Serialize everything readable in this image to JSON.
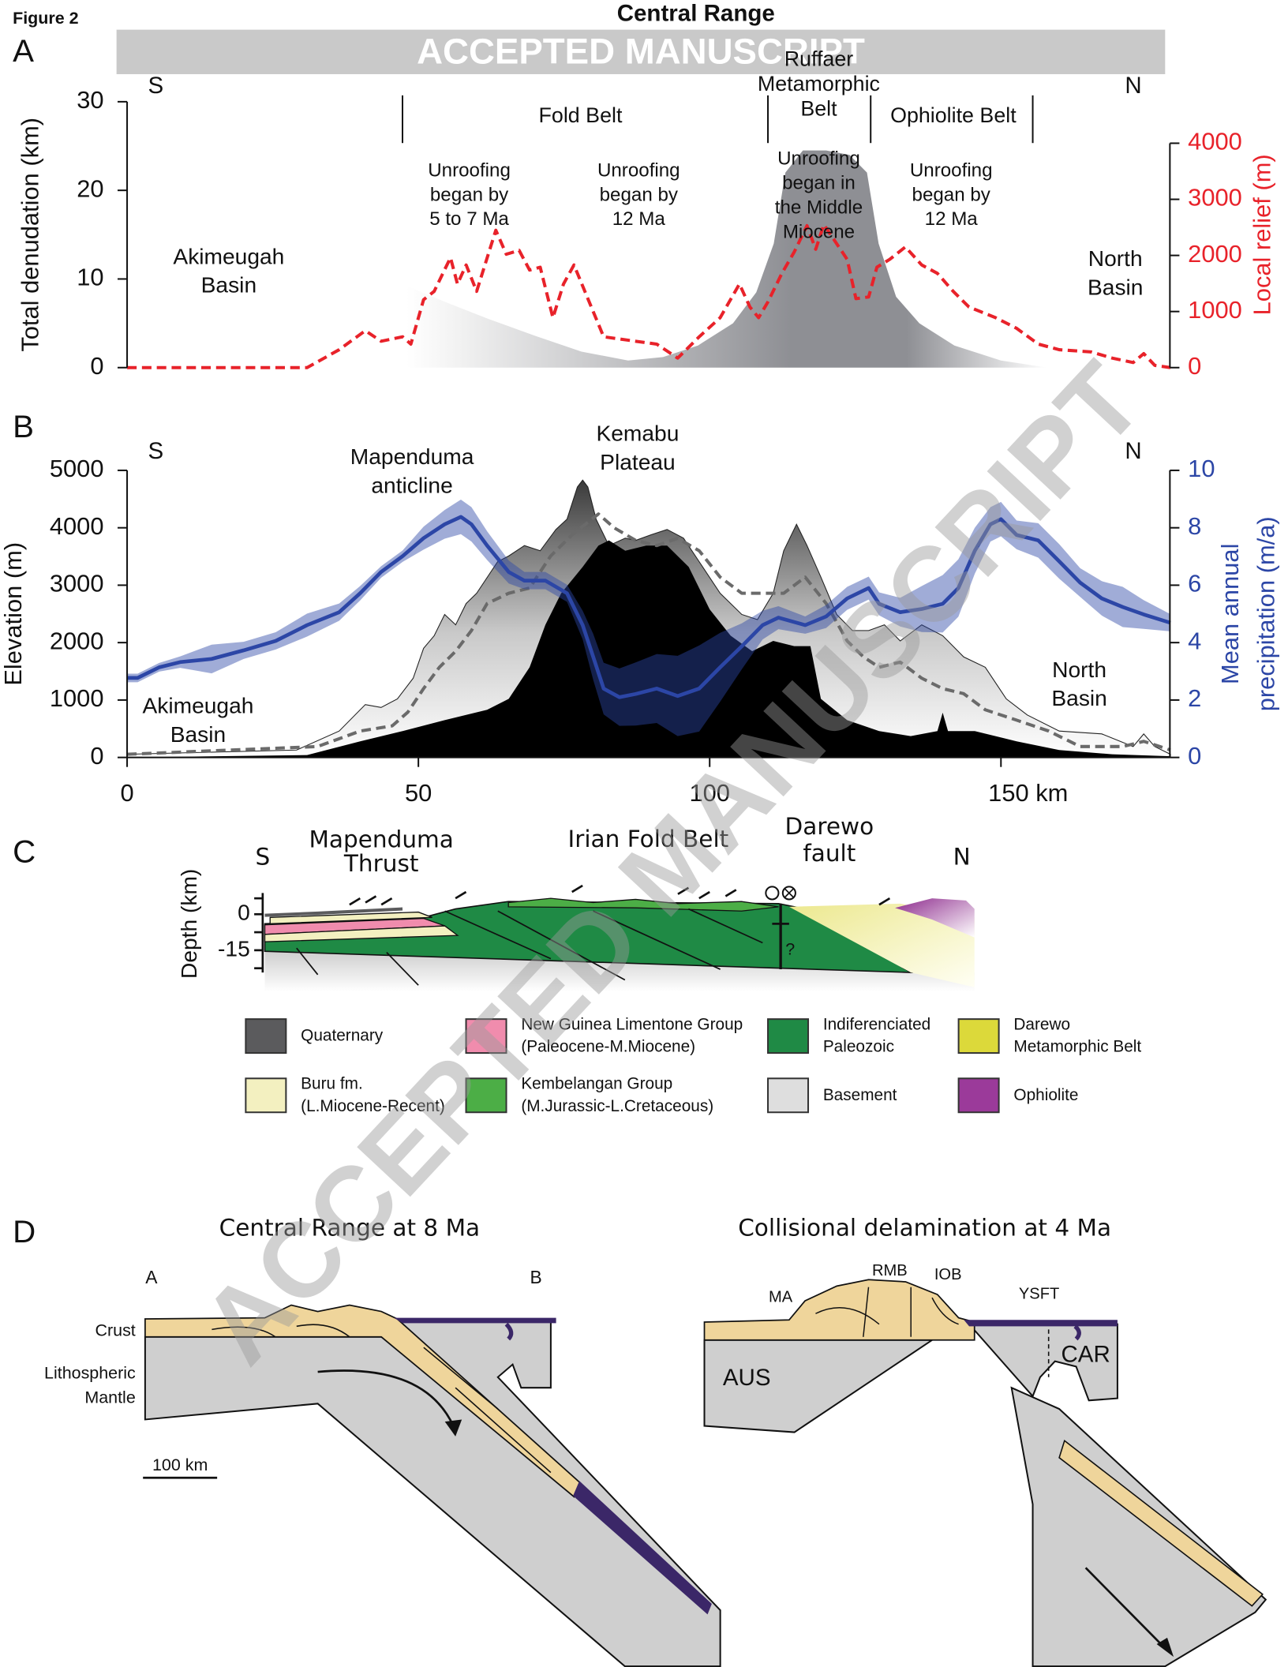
{
  "figure_label": "Figure 2",
  "title": "Central Range",
  "banner": "ACCEPTED MANUSCRIPT",
  "watermark": "ACCEPTED MANUSCRIPT",
  "panels": {
    "a": "A",
    "b": "B",
    "c": "C",
    "d": "D"
  },
  "chart_data": [
    {
      "type": "line",
      "y_label": "Total denudation (km)",
      "y2_label": "Local relief (m)",
      "xlim": [
        0,
        179
      ],
      "ylim": [
        0,
        30
      ],
      "yticks": [
        0,
        10,
        20,
        30
      ],
      "y2lim": [
        0,
        4740
      ],
      "y2ticks": [
        0,
        1000,
        2000,
        3000,
        4000
      ],
      "annotations": {
        "south": "S",
        "north": "N",
        "fold_belt": "Fold Belt",
        "ruffaer": [
          "Ruffaer",
          "Metamorphic",
          "Belt"
        ],
        "ophiolite_belt": "Ophiolite Belt",
        "unroofing_1": [
          "Unroofing",
          "began by",
          "5 to 7 Ma"
        ],
        "unroofing_2": [
          "Unroofing",
          "began by",
          "12 Ma"
        ],
        "unroofing_3": [
          "Unroofing",
          "began in",
          "the Middle",
          "Miocene"
        ],
        "unroofing_4": [
          "Unroofing",
          "began by",
          "12 Ma"
        ],
        "basin_south": [
          "Akimeugah",
          "Basin"
        ],
        "basin_north": [
          "North",
          "Basin"
        ]
      },
      "series": [
        {
          "color": "#8e8f94",
          "area": true,
          "gradient": "horizontal",
          "x": [
            48,
            55,
            62,
            70,
            78,
            86,
            92,
            98,
            104,
            108,
            111,
            113,
            116,
            120,
            124,
            127,
            129,
            132,
            136,
            142,
            150,
            158
          ],
          "values": [
            9.2,
            7.3,
            5.5,
            3.6,
            1.8,
            0.8,
            1.2,
            2.5,
            5,
            8.5,
            14,
            22,
            24.5,
            24.5,
            24,
            22,
            14,
            8,
            5,
            2.5,
            0.8,
            0
          ]
        },
        {
          "color": "#e8222a",
          "dashed": true,
          "axis": "y2",
          "x": [
            0,
            30.9,
            36.4,
            40.9,
            43.6,
            47.3,
            48.7,
            50.9,
            52.7,
            55.5,
            56.7,
            58.2,
            60,
            63.3,
            65.1,
            67.3,
            69.1,
            70.9,
            73.1,
            74.9,
            76.7,
            79.1,
            81.8,
            87.3,
            90.9,
            94.5,
            98.2,
            101.8,
            105.1,
            106.9,
            108.4,
            110,
            112.4,
            114.5,
            116.7,
            118.2,
            119.6,
            121.8,
            123.6,
            125.1,
            127.3,
            128.7,
            130.9,
            133.6,
            136.4,
            139.1,
            141.8,
            144.5,
            149.1,
            152.7,
            156.4,
            160,
            165.5,
            169.1,
            172.7,
            174.5,
            176.4,
            179.1
          ],
          "values": [
            0,
            0,
            320,
            660,
            470,
            550,
            420,
            1210,
            1360,
            1960,
            1490,
            1830,
            1360,
            2450,
            2020,
            2090,
            1740,
            1790,
            890,
            1490,
            1830,
            1230,
            550,
            470,
            420,
            170,
            550,
            890,
            1490,
            1080,
            890,
            1170,
            1680,
            2060,
            2530,
            2110,
            2550,
            2210,
            1930,
            1230,
            1260,
            1790,
            1930,
            2150,
            1830,
            1680,
            1360,
            1080,
            890,
            700,
            420,
            320,
            280,
            170,
            90,
            250,
            40,
            0
          ]
        }
      ]
    },
    {
      "type": "line",
      "y_label": "Elevation (m)",
      "y2_label": [
        "Mean annual",
        "precipitation (m/a)"
      ],
      "xlim": [
        0,
        179
      ],
      "xticks": [
        0,
        50,
        100,
        {
          "value": 150,
          "label": "150 km"
        }
      ],
      "ylim": [
        0,
        5000
      ],
      "yticks": [
        0,
        1000,
        2000,
        3000,
        4000,
        5000
      ],
      "y2lim": [
        0,
        10
      ],
      "y2ticks": [
        0,
        2,
        4,
        6,
        8,
        10
      ],
      "annotations": {
        "south": "S",
        "north": "N",
        "kemabu": [
          "Kemabu",
          "Plateau"
        ],
        "mapenduma": [
          "Mapenduma",
          "anticline"
        ],
        "basin_south": [
          "Akimeugah",
          "Basin"
        ],
        "basin_north": [
          "North",
          "Basin"
        ]
      },
      "series": [
        {
          "color": "#3a3a3a",
          "area": true,
          "gradient": "vertical",
          "x": [
            0,
            29.1,
            36.4,
            40.9,
            43.6,
            46.4,
            49.1,
            50.9,
            52.7,
            54.5,
            56.4,
            58.2,
            60,
            63.6,
            65.5,
            68.2,
            70.9,
            73.6,
            75.5,
            77.3,
            78.2,
            79.1,
            80.5,
            82.7,
            85.5,
            87.3,
            90,
            92.7,
            95.5,
            98.2,
            101.8,
            105.5,
            108.2,
            110.9,
            112.7,
            114.9,
            116.7,
            119.1,
            121.8,
            124.5,
            127.3,
            130,
            132.7,
            136.4,
            140,
            143.6,
            147.3,
            150.9,
            154.5,
            160,
            167.3,
            172.7,
            174.5,
            176.4,
            179.1
          ],
          "values": [
            55,
            130,
            460,
            920,
            870,
            1020,
            1380,
            1900,
            2120,
            2490,
            2310,
            2680,
            2860,
            3410,
            3510,
            3690,
            3600,
            3970,
            4150,
            4710,
            4830,
            4710,
            4150,
            3690,
            3820,
            3780,
            3880,
            3970,
            3820,
            3410,
            2860,
            2490,
            2400,
            2860,
            3600,
            4060,
            3690,
            3140,
            2490,
            2210,
            2210,
            2310,
            2030,
            2310,
            2120,
            1750,
            1570,
            1020,
            740,
            460,
            410,
            190,
            410,
            190,
            55
          ]
        },
        {
          "color": "#000000",
          "area": true,
          "x": [
            0,
            30.9,
            40,
            47.3,
            54.5,
            61.8,
            65.5,
            69.1,
            71.8,
            74.5,
            78.2,
            80.9,
            82.7,
            85.5,
            89.1,
            92.7,
            96.4,
            100,
            103.6,
            107.3,
            110.9,
            114.5,
            117.3,
            119.1,
            123.6,
            129.1,
            134.5,
            139.1,
            140,
            140.9,
            145.5,
            152.7,
            160,
            169.1,
            179.1
          ],
          "values": [
            0,
            40,
            280,
            460,
            650,
            830,
            1020,
            1570,
            2310,
            2860,
            3320,
            3690,
            3780,
            3600,
            3690,
            3690,
            3320,
            2580,
            2120,
            1850,
            2030,
            1940,
            1940,
            1020,
            650,
            460,
            370,
            460,
            780,
            460,
            460,
            280,
            130,
            55,
            20
          ]
        },
        {
          "color": "#6a6a6a",
          "dashed": true,
          "x": [
            0,
            32.7,
            40,
            45.5,
            48.2,
            50.9,
            53.6,
            56.4,
            59.1,
            61.8,
            65.5,
            69.1,
            72.7,
            76.4,
            80.9,
            83.6,
            87.3,
            90.9,
            94.5,
            98.2,
            101.8,
            105.5,
            109.1,
            112.7,
            116.4,
            120,
            123.6,
            126.4,
            129.1,
            132.7,
            136.4,
            140,
            143.6,
            147.3,
            152.7,
            158.2,
            163.6,
            170.9,
            174.5,
            179.1
          ],
          "values": [
            55,
            190,
            460,
            550,
            790,
            1200,
            1570,
            1850,
            2210,
            2680,
            2860,
            2950,
            3510,
            3880,
            4240,
            4000,
            3780,
            3690,
            3820,
            3600,
            3140,
            2860,
            2860,
            2860,
            3140,
            2680,
            2030,
            1750,
            1570,
            1660,
            1380,
            1200,
            1110,
            830,
            650,
            460,
            190,
            190,
            280,
            130
          ]
        },
        {
          "color": "#2c46a6",
          "axis": "y2",
          "x": [
            0,
            1.8,
            5.5,
            9.1,
            14.5,
            20,
            25.5,
            30.9,
            36.4,
            40,
            43.6,
            47.3,
            50.9,
            54.5,
            57.3,
            59.1,
            61.8,
            65.5,
            68.2,
            71.8,
            75.5,
            78.2,
            80,
            81.8,
            84.5,
            87.3,
            90.9,
            94.5,
            98.2,
            101.8,
            105.5,
            109.1,
            111.8,
            116.4,
            120,
            123.6,
            127.3,
            129.1,
            132.7,
            136.4,
            140,
            142.7,
            145.5,
            148.2,
            150,
            152.7,
            156.4,
            160,
            163.6,
            167.3,
            170.9,
            174.5,
            179.1
          ],
          "values": [
            2.77,
            2.77,
            3.14,
            3.32,
            3.43,
            3.73,
            4.06,
            4.61,
            5.06,
            5.72,
            6.46,
            7.01,
            7.64,
            8.12,
            8.38,
            8.12,
            7.38,
            6.46,
            6.16,
            6.16,
            5.72,
            4.61,
            3.51,
            2.4,
            2.1,
            2.21,
            2.4,
            2.14,
            2.4,
            3.14,
            3.87,
            4.61,
            4.87,
            4.61,
            4.91,
            5.54,
            5.9,
            5.35,
            5.06,
            5.17,
            5.35,
            5.9,
            7.2,
            8.12,
            8.3,
            7.75,
            7.56,
            6.83,
            6.09,
            5.54,
            5.24,
            4.98,
            4.69
          ],
          "errors": [
            0.15,
            0.15,
            0.15,
            0.2,
            0.5,
            0.3,
            0.3,
            0.4,
            0.3,
            0.25,
            0.2,
            0.2,
            0.4,
            0.5,
            0.6,
            0.6,
            0.5,
            0.4,
            0.3,
            0.3,
            0.3,
            0.5,
            0.8,
            0.9,
            1.0,
            1.1,
            1.2,
            1.4,
            1.5,
            1.2,
            0.8,
            0.5,
            0.4,
            0.3,
            0.4,
            0.4,
            0.4,
            0.4,
            0.5,
            0.8,
            1.0,
            1.0,
            0.8,
            0.6,
            0.6,
            0.5,
            0.6,
            0.6,
            0.5,
            0.6,
            0.7,
            0.5,
            0.3
          ]
        }
      ]
    }
  ],
  "cross_section": {
    "depth_label": "Depth (km)",
    "depth_ticks": [
      "0",
      "-15"
    ],
    "south": "S",
    "north": "N",
    "mapenduma_thrust": [
      "Mapenduma",
      "Thrust"
    ],
    "irian_fold_belt": "Irian Fold Belt",
    "darewo_fault": [
      "Darewo",
      "fault"
    ],
    "question": "?"
  },
  "legend": [
    {
      "label": [
        "Quaternary"
      ],
      "color": "#5b5b5d"
    },
    {
      "label": [
        "New Guinea Limentone Group",
        "(Paleocene-M.Miocene)"
      ],
      "color": "#f08cad"
    },
    {
      "label": [
        "Indiferenciated",
        "Paleozoic"
      ],
      "color": "#1f8a45"
    },
    {
      "label": [
        "Darewo",
        "Metamorphic Belt"
      ],
      "color": "#dcd93a"
    },
    {
      "label": [
        "Buru fm.",
        "(L.Miocene-Recent)"
      ],
      "color": "#f3f0c0"
    },
    {
      "label": [
        "Kembelangan Group",
        "(M.Jurassic-L.Cretaceous)"
      ],
      "color": "#4cae46"
    },
    {
      "label": [
        "Basement"
      ],
      "color": "#dedede"
    },
    {
      "label": [
        "Ophiolite"
      ],
      "color": "#9b3a9a"
    }
  ],
  "models": {
    "left": {
      "title": "Central Range at 8 Ma",
      "point_a": "A",
      "point_b": "B",
      "crust": "Crust",
      "mantle": [
        "Lithospheric",
        "Mantle"
      ],
      "scale": "100 km"
    },
    "right": {
      "title": "Collisional delamination at 4 Ma",
      "ma": "MA",
      "rmb": "RMB",
      "iob": "IOB",
      "ysft": "YSFT",
      "aus": "AUS",
      "car": "CAR"
    }
  }
}
